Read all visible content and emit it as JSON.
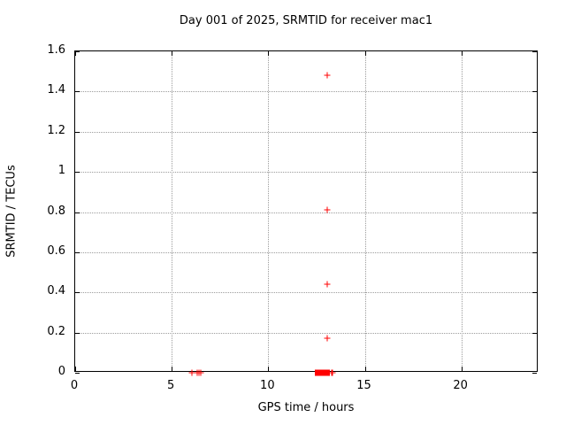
{
  "title": "Day 001 of 2025, SRMTID for receiver mac1",
  "x_axis": {
    "label": "GPS time / hours",
    "range": [
      0,
      24
    ],
    "ticks": [
      {
        "value": 0,
        "label": "0"
      },
      {
        "value": 5,
        "label": "5"
      },
      {
        "value": 10,
        "label": "10"
      },
      {
        "value": 15,
        "label": "15"
      },
      {
        "value": 20,
        "label": "20"
      }
    ]
  },
  "y_axis": {
    "label": "SRMTID / TECUs",
    "range": [
      0,
      1.6
    ],
    "ticks": [
      {
        "value": 0,
        "label": "0"
      },
      {
        "value": 0.2,
        "label": "0.2"
      },
      {
        "value": 0.4,
        "label": "0.4"
      },
      {
        "value": 0.6,
        "label": "0.6"
      },
      {
        "value": 0.8,
        "label": "0.8"
      },
      {
        "value": 1.0,
        "label": "1"
      },
      {
        "value": 1.2,
        "label": "1.2"
      },
      {
        "value": 1.4,
        "label": "1.4"
      },
      {
        "value": 1.6,
        "label": "1.6"
      }
    ]
  },
  "chart_data": {
    "type": "scatter",
    "marker": "plus",
    "grid": true,
    "background": "#ffffff",
    "axis_color": "#000000",
    "grid_color": "#9c9c9c",
    "series": [
      {
        "name": "SRMTID",
        "color": "#ff0000",
        "points": [
          [
            6.03,
            0
          ],
          [
            6.31,
            0
          ],
          [
            6.4,
            0
          ],
          [
            6.49,
            0
          ],
          [
            13.26,
            0
          ],
          [
            13.35,
            0
          ],
          [
            13.04,
            0.17
          ],
          [
            13.04,
            0.44
          ],
          [
            13.04,
            0.81
          ],
          [
            13.04,
            1.48
          ]
        ],
        "dense_band": {
          "x_start": 12.42,
          "x_end": 13.2,
          "y": 0,
          "description": "many overlapping points at y=0"
        }
      }
    ]
  }
}
